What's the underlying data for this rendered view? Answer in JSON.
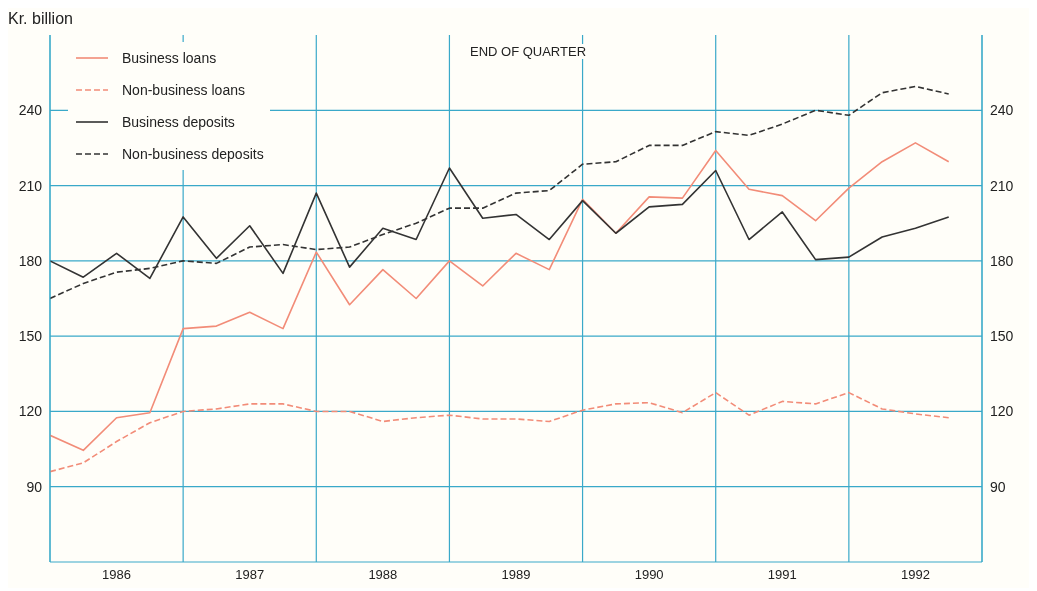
{
  "chart_data": {
    "type": "line",
    "subtitle": "END OF QUARTER",
    "ylabel": "Kr. billion",
    "x": [
      1986,
      1986.25,
      1986.5,
      1986.75,
      1987,
      1987.25,
      1987.5,
      1987.75,
      1988,
      1988.25,
      1988.5,
      1988.75,
      1989,
      1989.25,
      1989.5,
      1989.75,
      1990,
      1990.25,
      1990.5,
      1990.75,
      1991,
      1991.25,
      1991.5,
      1991.75,
      1992,
      1992.25,
      1992.5,
      1992.75
    ],
    "series": [
      {
        "name": "Business loans",
        "color": "#f28c78",
        "line_style": "solid",
        "values": [
          110.5,
          104.5,
          117.5,
          119.5,
          153,
          154,
          159.5,
          153,
          183.5,
          162.5,
          176.5,
          165,
          180,
          170,
          183,
          176.5,
          204.5,
          191,
          205.5,
          205,
          224,
          208.5,
          206,
          196,
          209,
          219.5,
          227,
          219.5
        ]
      },
      {
        "name": "Non-business loans",
        "color": "#f28c78",
        "line_style": "dashed",
        "values": [
          96,
          99.5,
          108,
          115.5,
          120,
          121,
          123,
          123,
          120,
          120,
          116,
          117.5,
          118.5,
          117,
          117,
          116,
          120.5,
          123,
          123.5,
          119.5,
          127.5,
          118.5,
          124,
          123,
          127.5,
          121,
          119,
          117.5
        ]
      },
      {
        "name": "Business deposits",
        "color": "#333333",
        "line_style": "solid",
        "values": [
          180,
          173.5,
          183,
          173,
          197.5,
          181,
          194,
          175,
          207,
          177.5,
          193,
          188.5,
          217,
          197,
          198.5,
          188.5,
          204,
          191,
          201.5,
          202.5,
          216,
          188.5,
          199.5,
          180.5,
          181.5,
          189.5,
          193,
          197.5
        ]
      },
      {
        "name": "Non-business deposits",
        "color": "#333333",
        "line_style": "dashed",
        "values": [
          165,
          171,
          175.5,
          177,
          180,
          179,
          185.5,
          186.5,
          184.5,
          185.5,
          190.5,
          195,
          201,
          201,
          207,
          208,
          218.5,
          219.5,
          226,
          226,
          231.5,
          230,
          234.5,
          240,
          238,
          247,
          249.5,
          246.5
        ]
      }
    ],
    "xlim": [
      1986,
      1993
    ],
    "xticks": [
      {
        "value": 1986,
        "label": null
      },
      {
        "value": 1986.5,
        "label": "1986"
      },
      {
        "value": 1987,
        "label": null
      },
      {
        "value": 1987.5,
        "label": "1987"
      },
      {
        "value": 1988,
        "label": null
      },
      {
        "value": 1988.5,
        "label": "1988"
      },
      {
        "value": 1989,
        "label": null
      },
      {
        "value": 1989.5,
        "label": "1989"
      },
      {
        "value": 1990,
        "label": null
      },
      {
        "value": 1990.5,
        "label": "1990"
      },
      {
        "value": 1991,
        "label": null
      },
      {
        "value": 1991.5,
        "label": "1991"
      },
      {
        "value": 1992,
        "label": null
      },
      {
        "value": 1992.5,
        "label": "1992"
      },
      {
        "value": 1993,
        "label": null
      }
    ],
    "ylim": [
      60,
      270
    ],
    "yticks": [
      90,
      120,
      150,
      180,
      210,
      240
    ],
    "y2lim": [
      60,
      270
    ],
    "y2ticks": [
      90,
      120,
      150,
      180,
      210,
      240
    ],
    "grid": true,
    "legend": "top left",
    "marker": "none"
  }
}
